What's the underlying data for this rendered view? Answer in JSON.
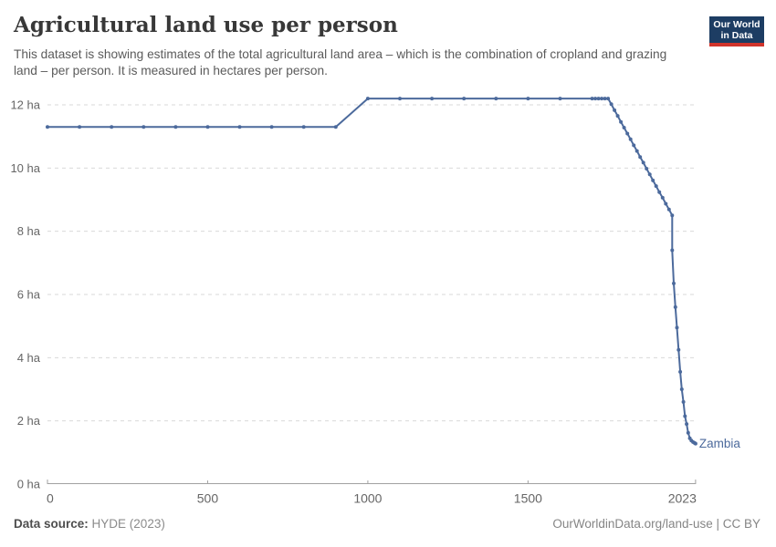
{
  "header": {
    "title": "Agricultural land use per person",
    "subtitle": "This dataset is showing estimates of the total agricultural land area – which is the combination of cropland and grazing land – per person. It is measured in hectares per person."
  },
  "logo": {
    "line1": "Our World",
    "line2": "in Data",
    "bg_color": "#1d3d63",
    "accent_color": "#d1342b"
  },
  "footer": {
    "source_label": "Data source:",
    "source_value": "HYDE (2023)",
    "link": "OurWorldinData.org/land-use | CC BY"
  },
  "chart_data": {
    "type": "line",
    "title": "Agricultural land use per person",
    "unit_suffix": " ha",
    "xlim": [
      0,
      2023
    ],
    "ylim": [
      0,
      12
    ],
    "x_ticks": [
      0,
      500,
      1000,
      1500,
      2023
    ],
    "y_ticks": [
      0,
      2,
      4,
      6,
      8,
      10,
      12
    ],
    "grid": "horizontal-dashed",
    "legend_position": "end-of-line-label",
    "colors": {
      "grid": "#dadada",
      "axis": "#a1a1a1",
      "tick_label": "#666666"
    },
    "series": [
      {
        "name": "Zambia",
        "color": "#4c6a9c",
        "points": [
          [
            0,
            11.3
          ],
          [
            100,
            11.3
          ],
          [
            200,
            11.3
          ],
          [
            300,
            11.3
          ],
          [
            400,
            11.3
          ],
          [
            500,
            11.3
          ],
          [
            600,
            11.3
          ],
          [
            700,
            11.3
          ],
          [
            800,
            11.3
          ],
          [
            900,
            11.3
          ],
          [
            1000,
            12.2
          ],
          [
            1100,
            12.2
          ],
          [
            1200,
            12.2
          ],
          [
            1300,
            12.2
          ],
          [
            1400,
            12.2
          ],
          [
            1500,
            12.2
          ],
          [
            1600,
            12.2
          ],
          [
            1700,
            12.2
          ],
          [
            1710,
            12.2
          ],
          [
            1720,
            12.2
          ],
          [
            1730,
            12.2
          ],
          [
            1740,
            12.2
          ],
          [
            1750,
            12.2
          ],
          [
            1760,
            12.02
          ],
          [
            1770,
            11.83
          ],
          [
            1780,
            11.65
          ],
          [
            1790,
            11.46
          ],
          [
            1800,
            11.28
          ],
          [
            1810,
            11.09
          ],
          [
            1820,
            10.91
          ],
          [
            1830,
            10.72
          ],
          [
            1840,
            10.54
          ],
          [
            1850,
            10.35
          ],
          [
            1860,
            10.17
          ],
          [
            1870,
            9.98
          ],
          [
            1880,
            9.8
          ],
          [
            1890,
            9.61
          ],
          [
            1900,
            9.43
          ],
          [
            1910,
            9.24
          ],
          [
            1920,
            9.06
          ],
          [
            1930,
            8.87
          ],
          [
            1940,
            8.69
          ],
          [
            1950,
            8.5
          ],
          [
            1950,
            7.4
          ],
          [
            1955,
            6.35
          ],
          [
            1960,
            5.6
          ],
          [
            1965,
            4.95
          ],
          [
            1970,
            4.25
          ],
          [
            1975,
            3.55
          ],
          [
            1980,
            3.0
          ],
          [
            1985,
            2.6
          ],
          [
            1990,
            2.15
          ],
          [
            1995,
            1.9
          ],
          [
            2000,
            1.62
          ],
          [
            2005,
            1.45
          ],
          [
            2010,
            1.38
          ],
          [
            2015,
            1.33
          ],
          [
            2020,
            1.3
          ],
          [
            2023,
            1.28
          ]
        ]
      }
    ]
  }
}
